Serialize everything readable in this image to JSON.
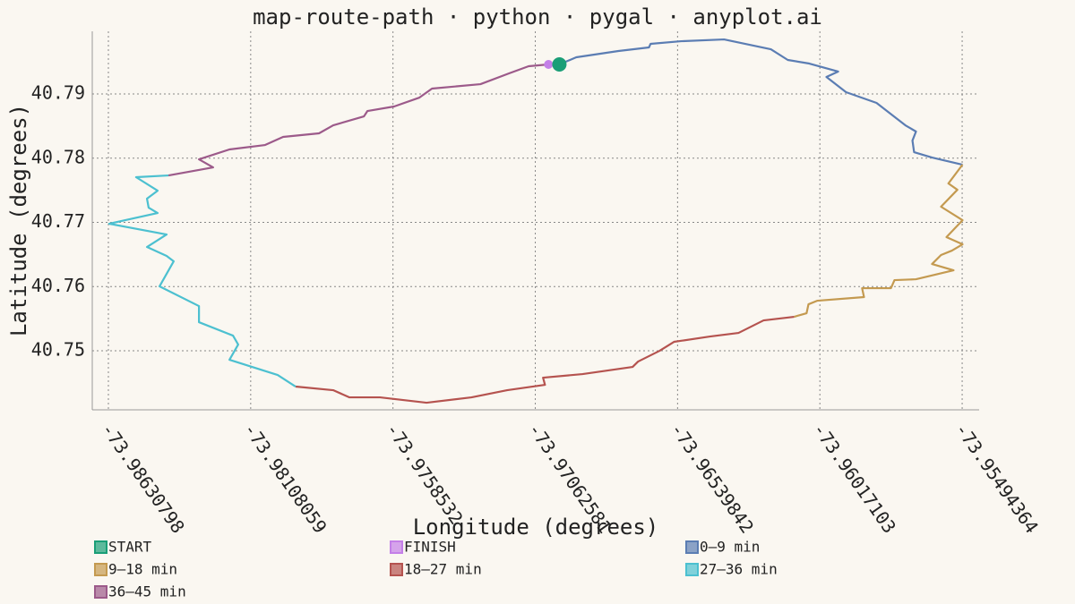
{
  "chart_data": {
    "type": "line",
    "title": "map-route-path · python · pygal · anyplot.ai",
    "x_label": "Longitude (degrees)",
    "y_label": "Latitude (degrees)",
    "xlim": [
      -73.9869,
      -73.95432
    ],
    "ylim": [
      40.7408,
      40.79976
    ],
    "xticks": [
      -73.98630798,
      -73.98108059,
      -73.9758532,
      -73.97062581,
      -73.96539842,
      -73.96017103,
      -73.95494364
    ],
    "yticks": [
      40.75,
      40.76,
      40.77,
      40.78,
      40.79
    ],
    "grid": true,
    "series": [
      {
        "name": "START",
        "color": "#1a9e77",
        "mode": "markers",
        "x": [
          -73.96974
        ],
        "values": [
          40.7946
        ]
      },
      {
        "name": "FINISH",
        "color": "#c47fe8",
        "mode": "markers",
        "x": [
          -73.97014
        ],
        "values": [
          40.7946
        ]
      },
      {
        "name": "0–9 min",
        "color": "#5b7db3",
        "mode": "lines",
        "x": [
          -73.96974,
          -73.96912,
          -73.96757,
          -73.96645,
          -73.96639,
          -73.96527,
          -73.96369,
          -73.96197,
          -73.96135,
          -73.96056,
          -73.9595,
          -73.95993,
          -73.95921,
          -73.95809,
          -73.95703,
          -73.95664,
          -73.95677,
          -73.95671,
          -73.95605,
          -73.95493
        ],
        "values": [
          40.7946,
          40.79572,
          40.79669,
          40.79725,
          40.79781,
          40.79822,
          40.7985,
          40.79697,
          40.7953,
          40.79474,
          40.79349,
          40.79265,
          40.79028,
          40.78861,
          40.78512,
          40.78415,
          40.78275,
          40.78094,
          40.7801,
          40.77899
        ]
      },
      {
        "name": "9–18 min",
        "color": "#c49a50",
        "mode": "lines",
        "x": [
          -73.95493,
          -73.95545,
          -73.95512,
          -73.95572,
          -73.95493,
          -73.95552,
          -73.95493,
          -73.95532,
          -73.95572,
          -73.95605,
          -73.95526,
          -73.95664,
          -73.95743,
          -73.95756,
          -73.95862,
          -73.95855,
          -73.96026,
          -73.96059,
          -73.96066,
          -73.96112
        ],
        "values": [
          40.77899,
          40.77606,
          40.77508,
          40.77244,
          40.77034,
          40.7677,
          40.76658,
          40.7656,
          40.76491,
          40.76351,
          40.76254,
          40.76114,
          40.761,
          40.75975,
          40.75975,
          40.75836,
          40.7578,
          40.75724,
          40.75585,
          40.75529
        ]
      },
      {
        "name": "18–27 min",
        "color": "#b5534f",
        "mode": "lines",
        "x": [
          -73.96112,
          -73.96224,
          -73.96316,
          -73.96421,
          -73.96553,
          -73.96606,
          -73.96685,
          -73.96705,
          -73.96889,
          -73.97034,
          -73.97027,
          -73.97166,
          -73.97297,
          -73.97462,
          -73.97633,
          -73.97745,
          -73.97805,
          -73.97943
        ],
        "values": [
          40.75529,
          40.75473,
          40.75278,
          40.75222,
          40.75139,
          40.74999,
          40.74832,
          40.74748,
          40.74637,
          40.74581,
          40.74469,
          40.74386,
          40.74274,
          40.74191,
          40.74274,
          40.74274,
          40.74386,
          40.74442
        ]
      },
      {
        "name": "27–36 min",
        "color": "#4cc0d0",
        "mode": "lines",
        "x": [
          -73.97943,
          -73.98009,
          -73.98186,
          -73.98154,
          -73.98173,
          -73.98298,
          -73.98298,
          -73.98443,
          -73.98391,
          -73.98417,
          -73.98489,
          -73.98417,
          -73.98628,
          -73.9845,
          -73.98483,
          -73.98489,
          -73.9845,
          -73.98529,
          -73.9841
        ],
        "values": [
          40.74442,
          40.74623,
          40.7486,
          40.75097,
          40.75236,
          40.75445,
          40.75696,
          40.76003,
          40.76393,
          40.76477,
          40.76616,
          40.76811,
          40.76979,
          40.77146,
          40.7723,
          40.77369,
          40.77494,
          40.77704,
          40.77731
        ]
      },
      {
        "name": "36–45 min",
        "color": "#9c5a8a",
        "mode": "lines",
        "x": [
          -73.9841,
          -73.98246,
          -73.98298,
          -73.98186,
          -73.98055,
          -73.97989,
          -73.97857,
          -73.97805,
          -73.97692,
          -73.97679,
          -73.97581,
          -73.97488,
          -73.97442,
          -73.97264,
          -73.97159,
          -73.97087,
          -73.97014
        ],
        "values": [
          40.77731,
          40.77857,
          40.77982,
          40.78136,
          40.78205,
          40.78331,
          40.78387,
          40.78512,
          40.78651,
          40.78735,
          40.78805,
          40.78944,
          40.79084,
          40.79153,
          40.79321,
          40.79432,
          40.7946
        ]
      }
    ]
  }
}
